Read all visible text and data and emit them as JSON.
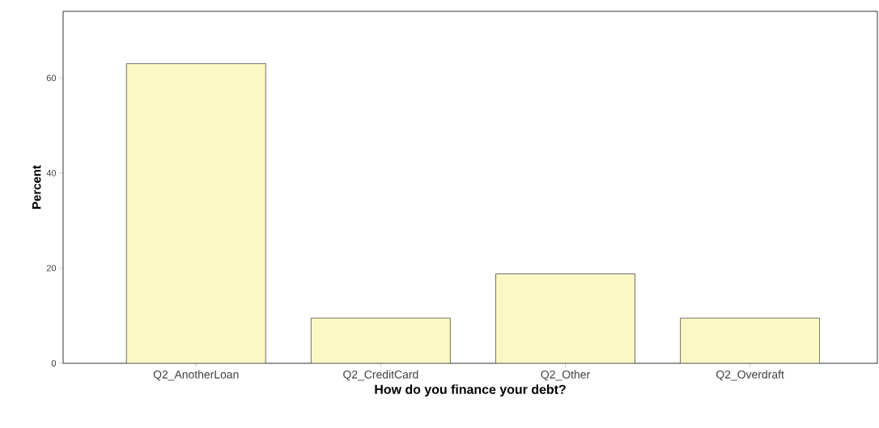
{
  "chart_data": {
    "type": "bar",
    "xlabel": "How do you finance your debt?",
    "ylabel": "Percent",
    "categories": [
      "Q2_AnotherLoan",
      "Q2_CreditCard",
      "Q2_Other",
      "Q2_Overdraft"
    ],
    "values": [
      63,
      9.5,
      18.8,
      9.5
    ],
    "color": "#fbf8c6",
    "ylim": [
      0,
      74
    ],
    "yticks": [
      0,
      20,
      40,
      60
    ],
    "grid": false
  }
}
